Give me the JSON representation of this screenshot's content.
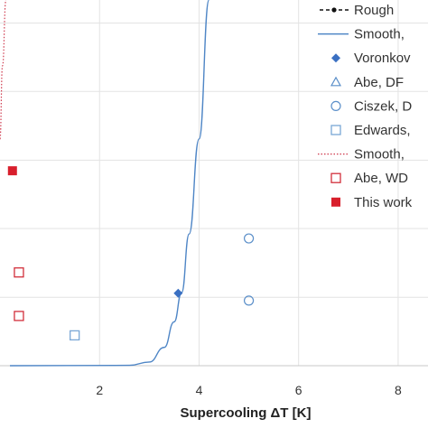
{
  "chart_data": {
    "type": "scatter",
    "xlabel": "Supercooling ΔT [K]",
    "ylabel": "",
    "xlim": [
      0,
      8.6
    ],
    "ylim": [
      0,
      1
    ],
    "x_ticks": [
      "2",
      "4",
      "6",
      "8"
    ],
    "grid": true,
    "legend_position": "right",
    "series": [
      {
        "name": "Rough",
        "kind": "line-marker",
        "color": "#111111",
        "x": [],
        "y": []
      },
      {
        "name": "Smooth,",
        "kind": "line",
        "color": "#4f86c6",
        "x": [
          0.2,
          2.6,
          3.0,
          3.3,
          3.5,
          3.65,
          3.8,
          4.0,
          4.2
        ],
        "y": [
          0.0,
          0.001,
          0.01,
          0.05,
          0.12,
          0.2,
          0.36,
          0.62,
          1.0
        ]
      },
      {
        "name": "Voronkov",
        "kind": "diamond-filled",
        "color": "#3a70c2",
        "x": [
          3.58
        ],
        "y": [
          0.198
        ]
      },
      {
        "name": "Abe, DF",
        "kind": "triangle-open",
        "color": "#5b8fc9",
        "x": [],
        "y": []
      },
      {
        "name": "Ciszek, D",
        "kind": "circle-open",
        "color": "#5b8fc9",
        "x": [
          5.0,
          5.0
        ],
        "y": [
          0.348,
          0.178
        ]
      },
      {
        "name": "Edwards,",
        "kind": "square-open",
        "color": "#7aa7d6",
        "x": [
          1.5
        ],
        "y": [
          0.083
        ]
      },
      {
        "name": "Smooth,",
        "kind": "dotted-line",
        "color": "#cf3a4e",
        "x": [
          0.0,
          0.05,
          0.12
        ],
        "y": [
          0.62,
          0.82,
          1.0
        ]
      },
      {
        "name": "Abe, WD",
        "kind": "square-open",
        "color": "#d22f3b",
        "x": [
          0.38,
          0.38
        ],
        "y": [
          0.255,
          0.136
        ]
      },
      {
        "name": "This work",
        "kind": "square-filled",
        "color": "#d81f2c",
        "x": [
          0.25
        ],
        "y": [
          0.533
        ]
      }
    ]
  }
}
